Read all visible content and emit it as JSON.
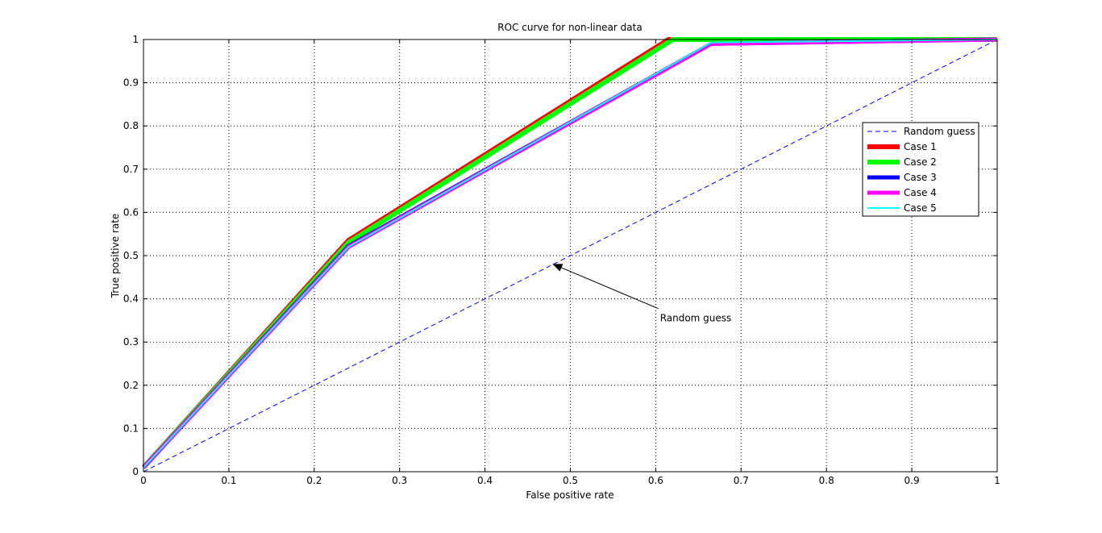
{
  "chart_data": {
    "type": "line",
    "title": "ROC curve for non-linear data",
    "xlabel": "False positive rate",
    "ylabel": "True positive rate",
    "xlim": [
      0,
      1
    ],
    "ylim": [
      0,
      1
    ],
    "xticks": [
      "0",
      "0.1",
      "0.2",
      "0.3",
      "0.4",
      "0.5",
      "0.6",
      "0.7",
      "0.8",
      "0.9",
      "1"
    ],
    "yticks": [
      "0",
      "0.1",
      "0.2",
      "0.3",
      "0.4",
      "0.5",
      "0.6",
      "0.7",
      "0.8",
      "0.9",
      "1"
    ],
    "grid": true,
    "legend_position": "right",
    "series": [
      {
        "name": "Random guess",
        "color": "#0000ff",
        "style": "dashed",
        "x": [
          0,
          1
        ],
        "y": [
          0,
          1
        ]
      },
      {
        "name": "Case 1",
        "color": "#ff0000",
        "style": "solid",
        "x": [
          0,
          0.24,
          0.615,
          1
        ],
        "y": [
          0.01,
          0.535,
          1.0,
          1.0
        ]
      },
      {
        "name": "Case 2",
        "color": "#00ff00",
        "style": "solid",
        "x": [
          0,
          0.24,
          0.62,
          1
        ],
        "y": [
          0.01,
          0.53,
          1.0,
          1.0
        ]
      },
      {
        "name": "Case 3",
        "color": "#0000ff",
        "style": "solid",
        "x": [
          0,
          0.24,
          0.665,
          1
        ],
        "y": [
          0.01,
          0.522,
          0.99,
          1.0
        ]
      },
      {
        "name": "Case 4",
        "color": "#ff00ff",
        "style": "solid",
        "x": [
          0,
          0.24,
          0.665,
          1
        ],
        "y": [
          0.01,
          0.52,
          0.99,
          1.0
        ]
      },
      {
        "name": "Case 5",
        "color": "#00ffff",
        "style": "solid",
        "x": [
          0,
          0.24,
          0.665,
          1
        ],
        "y": [
          0.01,
          0.52,
          0.993,
          1.0
        ]
      }
    ],
    "annotation": {
      "text": "Random guess",
      "points_to": [
        0.48,
        0.48
      ],
      "text_at": [
        0.605,
        0.355
      ]
    }
  }
}
